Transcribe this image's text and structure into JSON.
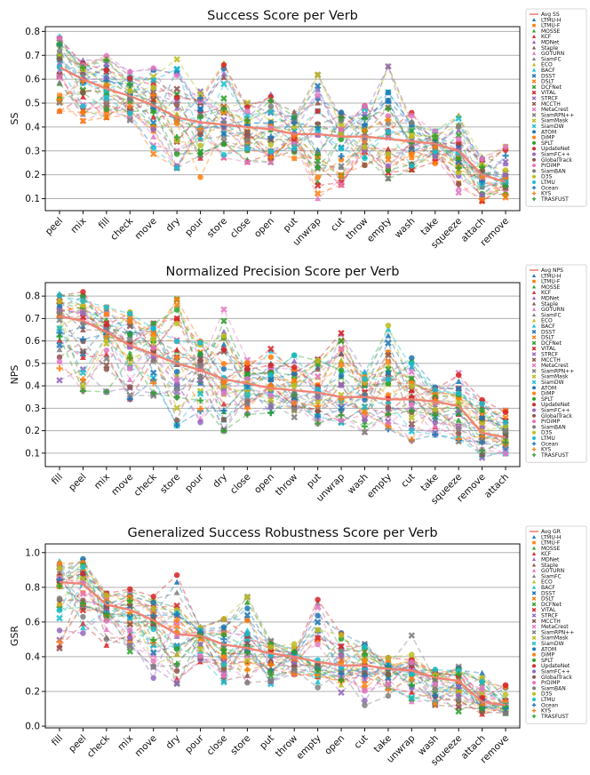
{
  "trackers": [
    {
      "name": "LTMU-H",
      "color": "#1f77b4",
      "marker": "triangle"
    },
    {
      "name": "LTMU-F",
      "color": "#ff7f0e",
      "marker": "square"
    },
    {
      "name": "MOSSE",
      "color": "#2ca02c",
      "marker": "triangle"
    },
    {
      "name": "KCF",
      "color": "#d62728",
      "marker": "triangle"
    },
    {
      "name": "MDNet",
      "color": "#9467bd",
      "marker": "triangle"
    },
    {
      "name": "Staple",
      "color": "#8c564b",
      "marker": "triangle"
    },
    {
      "name": "GOTURN",
      "color": "#e377c2",
      "marker": "triangle"
    },
    {
      "name": "SiamFC",
      "color": "#7f7f7f",
      "marker": "triangle"
    },
    {
      "name": "ECO",
      "color": "#bcbd22",
      "marker": "triangle"
    },
    {
      "name": "BACF",
      "color": "#17becf",
      "marker": "triangle"
    },
    {
      "name": "DSST",
      "color": "#1f77b4",
      "marker": "x"
    },
    {
      "name": "DSLT",
      "color": "#ff7f0e",
      "marker": "x"
    },
    {
      "name": "DCFNet",
      "color": "#2ca02c",
      "marker": "x"
    },
    {
      "name": "VITAL",
      "color": "#d62728",
      "marker": "x"
    },
    {
      "name": "STRCF",
      "color": "#9467bd",
      "marker": "x"
    },
    {
      "name": "MCCTH",
      "color": "#8c564b",
      "marker": "x"
    },
    {
      "name": "MetaCrest",
      "color": "#e377c2",
      "marker": "x"
    },
    {
      "name": "SiamRPN++",
      "color": "#7f7f7f",
      "marker": "x"
    },
    {
      "name": "SiamMask",
      "color": "#bcbd22",
      "marker": "x"
    },
    {
      "name": "SiamDW",
      "color": "#17becf",
      "marker": "x"
    },
    {
      "name": "ATOM",
      "color": "#1f77b4",
      "marker": "circle"
    },
    {
      "name": "DiMP",
      "color": "#ff7f0e",
      "marker": "circle"
    },
    {
      "name": "SPLT",
      "color": "#2ca02c",
      "marker": "circle"
    },
    {
      "name": "UpdateNet",
      "color": "#d62728",
      "marker": "circle"
    },
    {
      "name": "SiamFC++",
      "color": "#9467bd",
      "marker": "circle"
    },
    {
      "name": "GlobalTrack",
      "color": "#8c564b",
      "marker": "circle"
    },
    {
      "name": "PrDiMP",
      "color": "#e377c2",
      "marker": "circle"
    },
    {
      "name": "SiamBAN",
      "color": "#7f7f7f",
      "marker": "circle"
    },
    {
      "name": "D3S",
      "color": "#bcbd22",
      "marker": "circle"
    },
    {
      "name": "LTMU",
      "color": "#17becf",
      "marker": "circle"
    },
    {
      "name": "Ocean",
      "color": "#1f77b4",
      "marker": "plus"
    },
    {
      "name": "KYS",
      "color": "#ff7f0e",
      "marker": "plus"
    },
    {
      "name": "TRASFUST",
      "color": "#2ca02c",
      "marker": "plus"
    }
  ],
  "chart_data": [
    {
      "type": "line",
      "title": "Success Score per Verb",
      "xlabel": "",
      "ylabel": "SS",
      "ylim": [
        0.05,
        0.82
      ],
      "yticks": [
        "0.1",
        "0.2",
        "0.3",
        "0.4",
        "0.5",
        "0.6",
        "0.7",
        "0.8"
      ],
      "grid": "horizontal",
      "legend": "outside-right",
      "categories": [
        "peel",
        "mix",
        "fill",
        "check",
        "move",
        "dry",
        "pour",
        "store",
        "close",
        "open",
        "put",
        "unwrap",
        "cut",
        "throw",
        "empty",
        "wash",
        "take",
        "squeeze",
        "attach",
        "remove"
      ],
      "avg_name": "Avg SS",
      "avg": [
        0.65,
        0.6,
        0.56,
        0.53,
        0.49,
        0.44,
        0.42,
        0.41,
        0.4,
        0.39,
        0.37,
        0.37,
        0.36,
        0.36,
        0.35,
        0.34,
        0.33,
        0.3,
        0.2,
        0.17
      ],
      "top": [
        0.78,
        0.7,
        0.71,
        0.64,
        0.66,
        0.72,
        0.56,
        0.69,
        0.51,
        0.55,
        0.48,
        0.64,
        0.47,
        0.5,
        0.68,
        0.47,
        0.39,
        0.46,
        0.28,
        0.33
      ],
      "bottom": [
        0.45,
        0.41,
        0.43,
        0.42,
        0.27,
        0.21,
        0.17,
        0.26,
        0.24,
        0.24,
        0.26,
        0.1,
        0.14,
        0.21,
        0.17,
        0.21,
        0.24,
        0.11,
        0.08,
        0.1
      ]
    },
    {
      "type": "line",
      "title": "Normalized Precision Score per Verb",
      "xlabel": "",
      "ylabel": "NPS",
      "ylim": [
        0.04,
        0.86
      ],
      "yticks": [
        "0.1",
        "0.2",
        "0.3",
        "0.4",
        "0.5",
        "0.6",
        "0.7",
        "0.8"
      ],
      "grid": "horizontal",
      "legend": "outside-right",
      "categories": [
        "fill",
        "peel",
        "mix",
        "move",
        "check",
        "store",
        "pour",
        "dry",
        "close",
        "open",
        "throw",
        "put",
        "unwrap",
        "wash",
        "empty",
        "cut",
        "take",
        "squeeze",
        "remove",
        "attach"
      ],
      "avg_name": "Avg NPS",
      "avg": [
        0.71,
        0.69,
        0.64,
        0.58,
        0.54,
        0.5,
        0.47,
        0.43,
        0.41,
        0.39,
        0.38,
        0.37,
        0.35,
        0.35,
        0.34,
        0.34,
        0.33,
        0.31,
        0.19,
        0.17
      ],
      "top": [
        0.81,
        0.83,
        0.76,
        0.75,
        0.69,
        0.81,
        0.61,
        0.77,
        0.54,
        0.58,
        0.55,
        0.53,
        0.66,
        0.47,
        0.7,
        0.54,
        0.4,
        0.47,
        0.35,
        0.3
      ],
      "bottom": [
        0.4,
        0.35,
        0.35,
        0.32,
        0.34,
        0.2,
        0.21,
        0.18,
        0.26,
        0.27,
        0.25,
        0.22,
        0.2,
        0.18,
        0.19,
        0.14,
        0.17,
        0.12,
        0.07,
        0.07
      ]
    },
    {
      "type": "line",
      "title": "Generalized Success Robustness Score per Verb",
      "xlabel": "",
      "ylabel": "GSR",
      "ylim": [
        -0.01,
        1.05
      ],
      "yticks": [
        "0.0",
        "0.2",
        "0.4",
        "0.6",
        "0.8",
        "1.0"
      ],
      "grid": "horizontal",
      "legend": "outside-right",
      "categories": [
        "fill",
        "peel",
        "check",
        "mix",
        "move",
        "dry",
        "pour",
        "close",
        "store",
        "put",
        "throw",
        "empty",
        "open",
        "cut",
        "take",
        "unwrap",
        "wash",
        "squeeze",
        "attach",
        "remove"
      ],
      "avg_name": "Avg GR",
      "avg": [
        0.83,
        0.82,
        0.7,
        0.67,
        0.61,
        0.53,
        0.52,
        0.47,
        0.45,
        0.42,
        0.4,
        0.37,
        0.35,
        0.35,
        0.33,
        0.32,
        0.28,
        0.26,
        0.14,
        0.12
      ],
      "top": [
        0.95,
        0.99,
        0.77,
        0.8,
        0.76,
        0.9,
        0.58,
        0.63,
        0.77,
        0.51,
        0.48,
        0.76,
        0.56,
        0.51,
        0.4,
        0.54,
        0.36,
        0.35,
        0.32,
        0.25
      ],
      "bottom": [
        0.41,
        0.42,
        0.43,
        0.41,
        0.23,
        0.22,
        0.25,
        0.19,
        0.22,
        0.2,
        0.27,
        0.21,
        0.18,
        0.1,
        0.15,
        0.09,
        0.1,
        0.05,
        0.05,
        0.06
      ]
    }
  ]
}
